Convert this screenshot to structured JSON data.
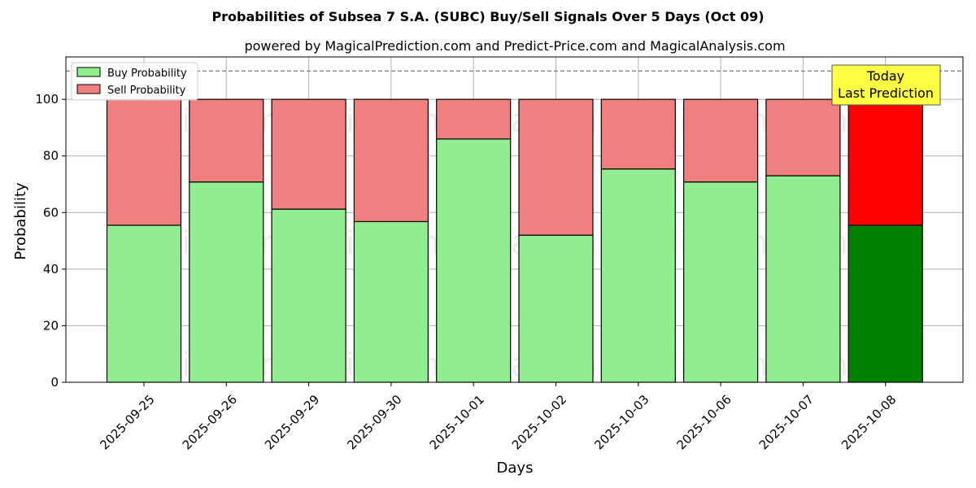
{
  "chart_data": {
    "type": "bar",
    "title": "Probabilities of Subsea 7 S.A. (SUBC) Buy/Sell Signals Over 5 Days (Oct 09)",
    "subtitle": "powered by MagicalPrediction.com and Predict-Price.com and MagicalAnalysis.com",
    "xlabel": "Days",
    "ylabel": "Probability",
    "ylim": [
      0,
      115
    ],
    "yticks": [
      0,
      20,
      40,
      60,
      80,
      100
    ],
    "grid": true,
    "stacked": true,
    "legend_position": "top-left",
    "reference_line": 110,
    "categories": [
      "2025-09-25",
      "2025-09-26",
      "2025-09-29",
      "2025-09-30",
      "2025-10-01",
      "2025-10-02",
      "2025-10-03",
      "2025-10-06",
      "2025-10-07",
      "2025-10-08"
    ],
    "series": [
      {
        "name": "Buy Probability",
        "color": "#90ee90",
        "values": [
          55.5,
          70.8,
          61.2,
          56.8,
          86.0,
          52.0,
          75.4,
          70.8,
          73.0,
          55.5
        ]
      },
      {
        "name": "Sell Probability",
        "color": "#f08080",
        "values": [
          44.5,
          29.2,
          38.8,
          43.2,
          14.0,
          48.0,
          24.6,
          29.2,
          27.0,
          44.5
        ]
      }
    ],
    "highlight": {
      "index": 9,
      "buy_color": "#008000",
      "sell_color": "#ff0000"
    },
    "annotation": {
      "lines": [
        "Today",
        "Last Prediction"
      ],
      "color": "#ffff44"
    },
    "watermarks": [
      "MagicalAnalysis.com",
      "MagicalPrediction.com",
      "MagicalAnalysis.com",
      "MagicalPrediction.com",
      "MagicalAnalysis.com",
      "MagicalPrediction.com"
    ]
  }
}
